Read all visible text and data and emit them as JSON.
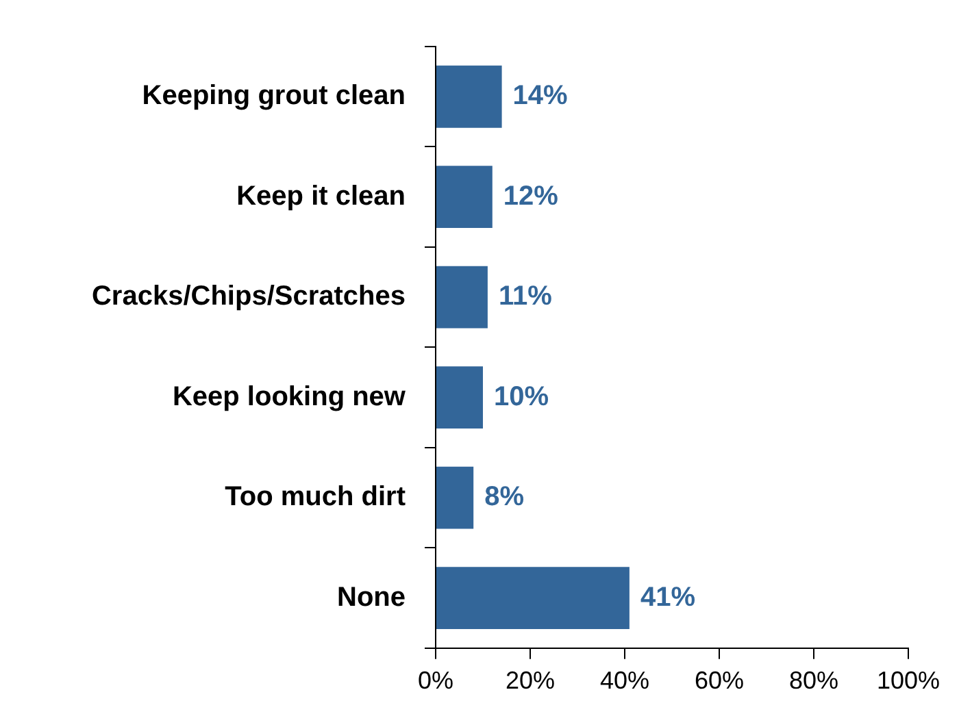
{
  "chart_data": {
    "type": "bar",
    "orientation": "horizontal",
    "categories": [
      "Keeping grout clean",
      "Keep it clean",
      "Cracks/Chips/Scratches",
      "Keep looking new",
      "Too much dirt",
      "None"
    ],
    "values": [
      14,
      12,
      11,
      10,
      8,
      41
    ],
    "color": "#336699",
    "value_labels": [
      "14%",
      "12%",
      "11%",
      "10%",
      "8%",
      "41%"
    ],
    "xlim": [
      0,
      100
    ],
    "xticks": [
      {
        "value": 0,
        "label": "0%"
      },
      {
        "value": 20,
        "label": "20%"
      },
      {
        "value": 40,
        "label": "40%"
      },
      {
        "value": 60,
        "label": "60%"
      },
      {
        "value": 80,
        "label": "80%"
      },
      {
        "value": 100,
        "label": "100%"
      }
    ],
    "grid": false,
    "legend": false
  }
}
